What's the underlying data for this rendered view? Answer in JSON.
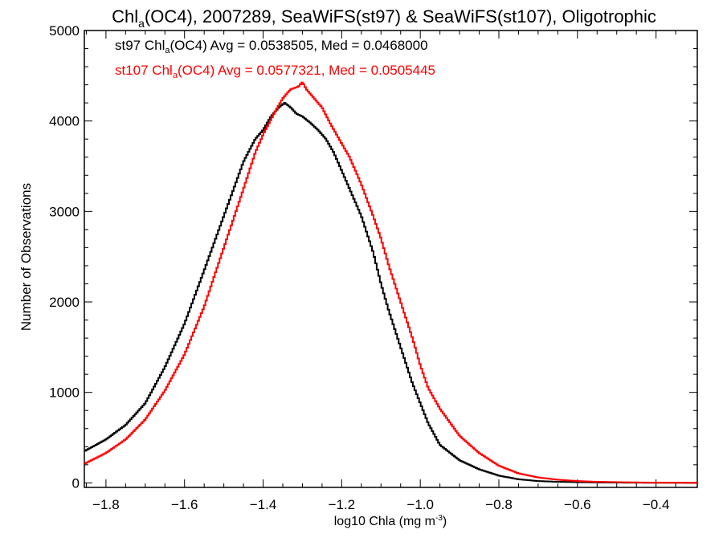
{
  "chart_data": {
    "type": "line",
    "title_main": "Chl",
    "title_sub": "a",
    "title_rest": "(OC4), 2007289, SeaWiFS(st97) & SeaWiFS(st107), Oligotrophic",
    "xlabel_pre": "log10 Chla (mg m",
    "xlabel_sup": "-3",
    "xlabel_post": ")",
    "ylabel": "Number of Observations",
    "xlim": [
      -1.855,
      -0.295
    ],
    "ylim": [
      -50,
      5000
    ],
    "xticks": [
      -1.8,
      -1.6,
      -1.4,
      -1.2,
      -1.0,
      -0.8,
      -0.6,
      -0.4
    ],
    "xtick_labels": [
      "−1.8",
      "−1.6",
      "−1.4",
      "−1.2",
      "−1.0",
      "−0.8",
      "−0.6",
      "−0.4"
    ],
    "yticks": [
      0,
      1000,
      2000,
      3000,
      4000,
      5000
    ],
    "ytick_labels": [
      "0",
      "1000",
      "2000",
      "3000",
      "4000",
      "5000"
    ],
    "series": [
      {
        "name": "st97",
        "color": "#000000",
        "legend_pre": "st97 Chl",
        "legend_sub": "a",
        "legend_post": "(OC4) Avg = 0.0538505, Med = 0.0468000",
        "x": [
          -1.855,
          -1.8,
          -1.75,
          -1.7,
          -1.65,
          -1.6,
          -1.55,
          -1.5,
          -1.45,
          -1.42,
          -1.4,
          -1.38,
          -1.36,
          -1.345,
          -1.33,
          -1.315,
          -1.3,
          -1.28,
          -1.26,
          -1.24,
          -1.22,
          -1.2,
          -1.18,
          -1.15,
          -1.12,
          -1.1,
          -1.08,
          -1.05,
          -1.02,
          -1.0,
          -0.98,
          -0.95,
          -0.9,
          -0.85,
          -0.8,
          -0.75,
          -0.7,
          -0.65,
          -0.6,
          -0.55,
          -0.5,
          -0.45,
          -0.4,
          -0.35,
          -0.3
        ],
        "y": [
          350,
          480,
          640,
          880,
          1280,
          1760,
          2350,
          2950,
          3550,
          3800,
          3900,
          4050,
          4150,
          4200,
          4150,
          4080,
          4050,
          3980,
          3900,
          3800,
          3650,
          3450,
          3250,
          2950,
          2550,
          2200,
          1900,
          1500,
          1100,
          880,
          660,
          420,
          250,
          150,
          80,
          40,
          20,
          12,
          8,
          5,
          3,
          2,
          1,
          1,
          0
        ]
      },
      {
        "name": "st107",
        "color": "#ff0000",
        "legend_pre": "st107 Chl",
        "legend_sub": "a",
        "legend_post": "(OC4) Avg = 0.0577321, Med = 0.0505445",
        "x": [
          -1.855,
          -1.8,
          -1.75,
          -1.7,
          -1.65,
          -1.6,
          -1.55,
          -1.5,
          -1.45,
          -1.42,
          -1.4,
          -1.37,
          -1.35,
          -1.33,
          -1.31,
          -1.3,
          -1.29,
          -1.27,
          -1.25,
          -1.23,
          -1.2,
          -1.18,
          -1.15,
          -1.12,
          -1.1,
          -1.08,
          -1.05,
          -1.02,
          -1.0,
          -0.98,
          -0.95,
          -0.9,
          -0.85,
          -0.8,
          -0.75,
          -0.7,
          -0.65,
          -0.6,
          -0.55,
          -0.5,
          -0.45,
          -0.4,
          -0.35,
          -0.3
        ],
        "y": [
          210,
          330,
          480,
          700,
          1020,
          1420,
          1950,
          2600,
          3250,
          3650,
          3850,
          4100,
          4250,
          4350,
          4380,
          4430,
          4350,
          4250,
          4150,
          3980,
          3750,
          3600,
          3300,
          2950,
          2700,
          2400,
          2000,
          1600,
          1300,
          1050,
          820,
          520,
          330,
          190,
          105,
          60,
          35,
          20,
          12,
          8,
          5,
          3,
          2,
          1
        ]
      }
    ]
  }
}
